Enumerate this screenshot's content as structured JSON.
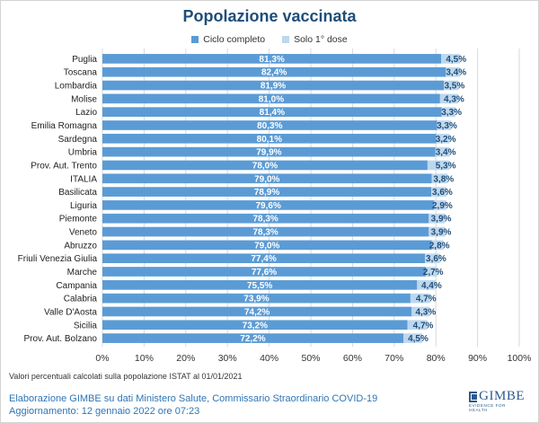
{
  "chart_data": {
    "type": "bar",
    "orientation": "horizontal",
    "stacked": true,
    "title": "Popolazione vaccinata",
    "xlabel": "",
    "ylabel": "",
    "xlim": [
      0,
      100
    ],
    "x_ticks": [
      "0%",
      "10%",
      "20%",
      "30%",
      "40%",
      "50%",
      "60%",
      "70%",
      "80%",
      "90%",
      "100%"
    ],
    "grid": true,
    "legend_position": "top-center",
    "categories": [
      "Puglia",
      "Toscana",
      "Lombardia",
      "Molise",
      "Lazio",
      "Emilia Romagna",
      "Sardegna",
      "Umbria",
      "Prov. Aut. Trento",
      "ITALIA",
      "Basilicata",
      "Liguria",
      "Piemonte",
      "Veneto",
      "Abruzzo",
      "Friuli Venezia Giulia",
      "Marche",
      "Campania",
      "Calabria",
      "Valle D'Aosta",
      "Sicilia",
      "Prov. Aut. Bolzano"
    ],
    "series": [
      {
        "name": "Ciclo completo",
        "color": "#5b9bd5",
        "values": [
          81.3,
          82.4,
          81.9,
          81.0,
          81.4,
          80.3,
          80.1,
          79.9,
          78.0,
          79.0,
          78.9,
          79.6,
          78.3,
          78.3,
          79.0,
          77.4,
          77.6,
          75.5,
          73.9,
          74.2,
          73.2,
          72.2
        ],
        "labels": [
          "81,3%",
          "82,4%",
          "81,9%",
          "81,0%",
          "81,4%",
          "80,3%",
          "80,1%",
          "79,9%",
          "78,0%",
          "79,0%",
          "78,9%",
          "79,6%",
          "78,3%",
          "78,3%",
          "79,0%",
          "77,4%",
          "77,6%",
          "75,5%",
          "73,9%",
          "74,2%",
          "73,2%",
          "72,2%"
        ]
      },
      {
        "name": "Solo 1° dose",
        "color": "#bdd7ee",
        "values": [
          4.5,
          3.4,
          3.5,
          4.3,
          3.3,
          3.3,
          3.2,
          3.4,
          5.3,
          3.8,
          3.6,
          2.9,
          3.9,
          3.9,
          2.8,
          3.6,
          2.7,
          4.4,
          4.7,
          4.3,
          4.7,
          4.5
        ],
        "labels": [
          "4,5%",
          "3,4%",
          "3,5%",
          "4,3%",
          "3,3%",
          "3,3%",
          "3,2%",
          "3,4%",
          "5,3%",
          "3,8%",
          "3,6%",
          "2,9%",
          "3,9%",
          "3,9%",
          "2,8%",
          "3,6%",
          "2,7%",
          "4,4%",
          "4,7%",
          "4,3%",
          "4,7%",
          "4,5%"
        ]
      }
    ]
  },
  "footer": {
    "note": "Valori percentuali calcolati sulla popolazione ISTAT al 01/01/2021",
    "credit_line1": "Elaborazione GIMBE su dati Ministero Salute, Commissario Straordinario COVID-19",
    "credit_line2": "Aggiornamento: 12 gennaio 2022 ore 07:23"
  },
  "logo": {
    "word": "GIMBE",
    "tagline": "EVIDENCE FOR HEALTH"
  },
  "colors": {
    "title": "#1f4e79",
    "label_inside": "#ffffff",
    "label_outside": "#1f4e79",
    "grid": "#d9d9d9"
  }
}
